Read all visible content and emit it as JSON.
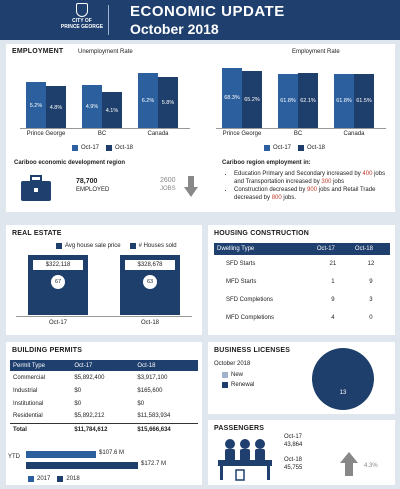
{
  "header": {
    "logo_line1": "CITY OF",
    "logo_line2": "PRINCE GEORGE",
    "title": "ECONOMIC  UPDATE",
    "subtitle": "October 2018"
  },
  "employment": {
    "section_title": "EMPLOYMENT",
    "unemployment": {
      "title": "Unemployment Rate",
      "categories": [
        "Prince George",
        "BC",
        "Canada"
      ],
      "series": [
        {
          "name": "Oct-17",
          "values": [
            5.2,
            4.9,
            6.2
          ],
          "labels": [
            "5.2%",
            "4.9%",
            "6.2%"
          ]
        },
        {
          "name": "Oct-18",
          "values": [
            4.8,
            4.1,
            5.8
          ],
          "labels": [
            "4.8%",
            "4.1%",
            "5.8%"
          ]
        }
      ]
    },
    "employment_rate": {
      "title": "Employment Rate",
      "categories": [
        "Prince George",
        "BC",
        "Canada"
      ],
      "series": [
        {
          "name": "Oct-17",
          "values": [
            68.3,
            61.8,
            61.8
          ],
          "labels": [
            "68.3%",
            "61.8%",
            "61.8%"
          ]
        },
        {
          "name": "Oct-18",
          "values": [
            65.2,
            62.1,
            61.5
          ],
          "labels": [
            "65.2%",
            "62.1%",
            "61.5%"
          ]
        }
      ]
    },
    "cariboo_dev_title": "Cariboo economic development region",
    "employed_number": "78,700",
    "employed_label": "EMPLOYED",
    "jobs_number": "2600",
    "jobs_label": "JOBS",
    "cariboo_emp_title": "Cariboo region employment in:",
    "bullet1_a": "Education Primary and Secondary increased by ",
    "bullet1_n1": "400",
    "bullet1_b": " jobs and Transportation increased by ",
    "bullet1_n2": "300",
    "bullet1_c": " jobs",
    "bullet2_a": "Construction decreased by ",
    "bullet2_n1": "900",
    "bullet2_b": " jobs and Retail Trade decreased by ",
    "bullet2_n2": "800",
    "bullet2_c": " jobs."
  },
  "real_estate": {
    "section_title": "REAL ESTATE",
    "legend_price": "Avg house sale price",
    "legend_sold": "# Houses sold",
    "oct17_price": "$322,118",
    "oct17_sold": "67",
    "oct18_price": "$328,678",
    "oct18_sold": "63",
    "oct17_label": "Oct-17",
    "oct18_label": "Oct-18"
  },
  "housing": {
    "section_title": "HOUSING CONSTRUCTION",
    "headers": [
      "Dwelling Type",
      "Oct-17",
      "Oct-18"
    ],
    "rows": [
      [
        "SFD Starts",
        "21",
        "12"
      ],
      [
        "MFD Starts",
        "1",
        "9"
      ],
      [
        "SFD Completions",
        "9",
        "3"
      ],
      [
        "MFD Completions",
        "4",
        "0"
      ]
    ]
  },
  "permits": {
    "section_title": "BUILDING PERMITS",
    "headers": [
      "Permit Type",
      "Oct-17",
      "Oct-18"
    ],
    "rows": [
      [
        "Commercial",
        "$5,892,400",
        "$3,917,100"
      ],
      [
        "Industrial",
        "$0",
        "$165,600"
      ],
      [
        "Institutional",
        "$0",
        "$0"
      ],
      [
        "Residential",
        "$5,892,212",
        "$11,583,934"
      ]
    ],
    "total": [
      "Total",
      "$11,784,612",
      "$15,666,634"
    ],
    "ytd_label": "YTD",
    "ytd_2017": "$107.6 M",
    "ytd_2018": "$172.7 M",
    "ytd_values": [
      107.6,
      172.7
    ],
    "legend_2017": "2017",
    "legend_2018": "2018"
  },
  "licenses": {
    "section_title": "BUSINESS LICENSES",
    "period": "October 2018",
    "legend_new": "New",
    "legend_renewal": "Renewal",
    "renewal_value": "13"
  },
  "passengers": {
    "section_title": "PASSENGERS",
    "oct17_label": "Oct-17",
    "oct17_value": "43,864",
    "oct18_label": "Oct-18",
    "oct18_value": "45,755",
    "change": "4.3%"
  },
  "colors": {
    "navy": "#1f3f6e",
    "blue": "#2b5f9e",
    "dark_bar": "#1e3f6b",
    "red": "#c0392b"
  }
}
